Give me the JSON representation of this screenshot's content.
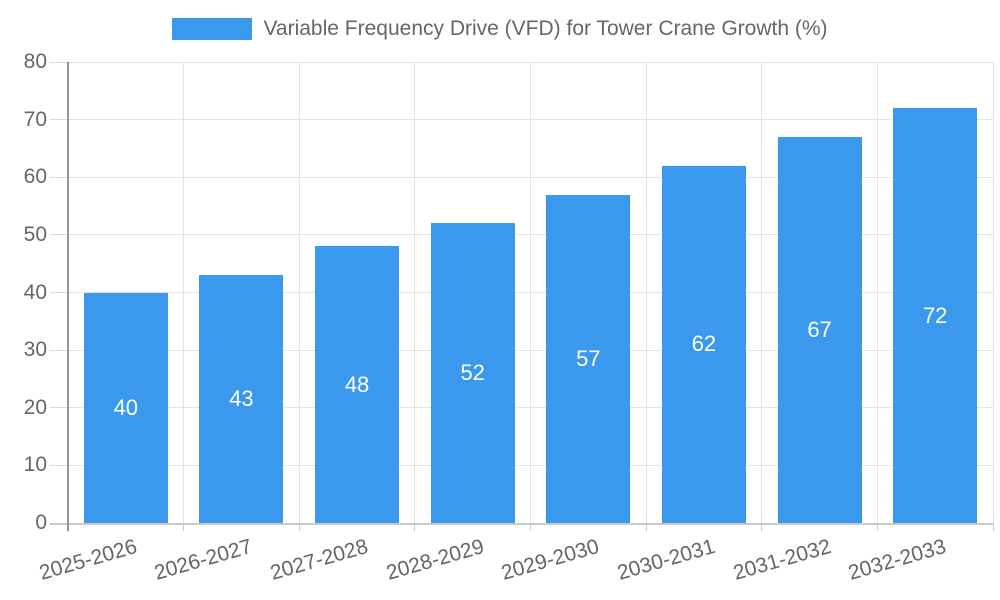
{
  "chart_data": {
    "type": "bar",
    "title": "Variable Frequency Drive (VFD) for Tower Crane Growth (%)",
    "categories": [
      "2025-2026",
      "2026-2027",
      "2027-2028",
      "2028-2029",
      "2029-2030",
      "2030-2031",
      "2031-2032",
      "2032-2033"
    ],
    "values": [
      40,
      43,
      48,
      52,
      57,
      62,
      67,
      72
    ],
    "series": [
      {
        "name": "Variable Frequency Drive (VFD) for Tower Crane Growth (%)",
        "values": [
          40,
          43,
          48,
          52,
          57,
          62,
          67,
          72
        ]
      }
    ],
    "xlabel": "",
    "ylabel": "",
    "ylim": [
      0,
      80
    ],
    "y_ticks": [
      0,
      10,
      20,
      30,
      40,
      50,
      60,
      70,
      80
    ],
    "grid": true,
    "legend_position": "top",
    "value_labels_shown": true,
    "value_label_position": "center",
    "colors": {
      "bar": "#3b99ed",
      "value_label": "#ffffff",
      "axis_text": "#666666",
      "gridline": "#e3e3e3",
      "x_axis_line": "#c9c9c9",
      "y_axis_line": "#949494"
    }
  }
}
